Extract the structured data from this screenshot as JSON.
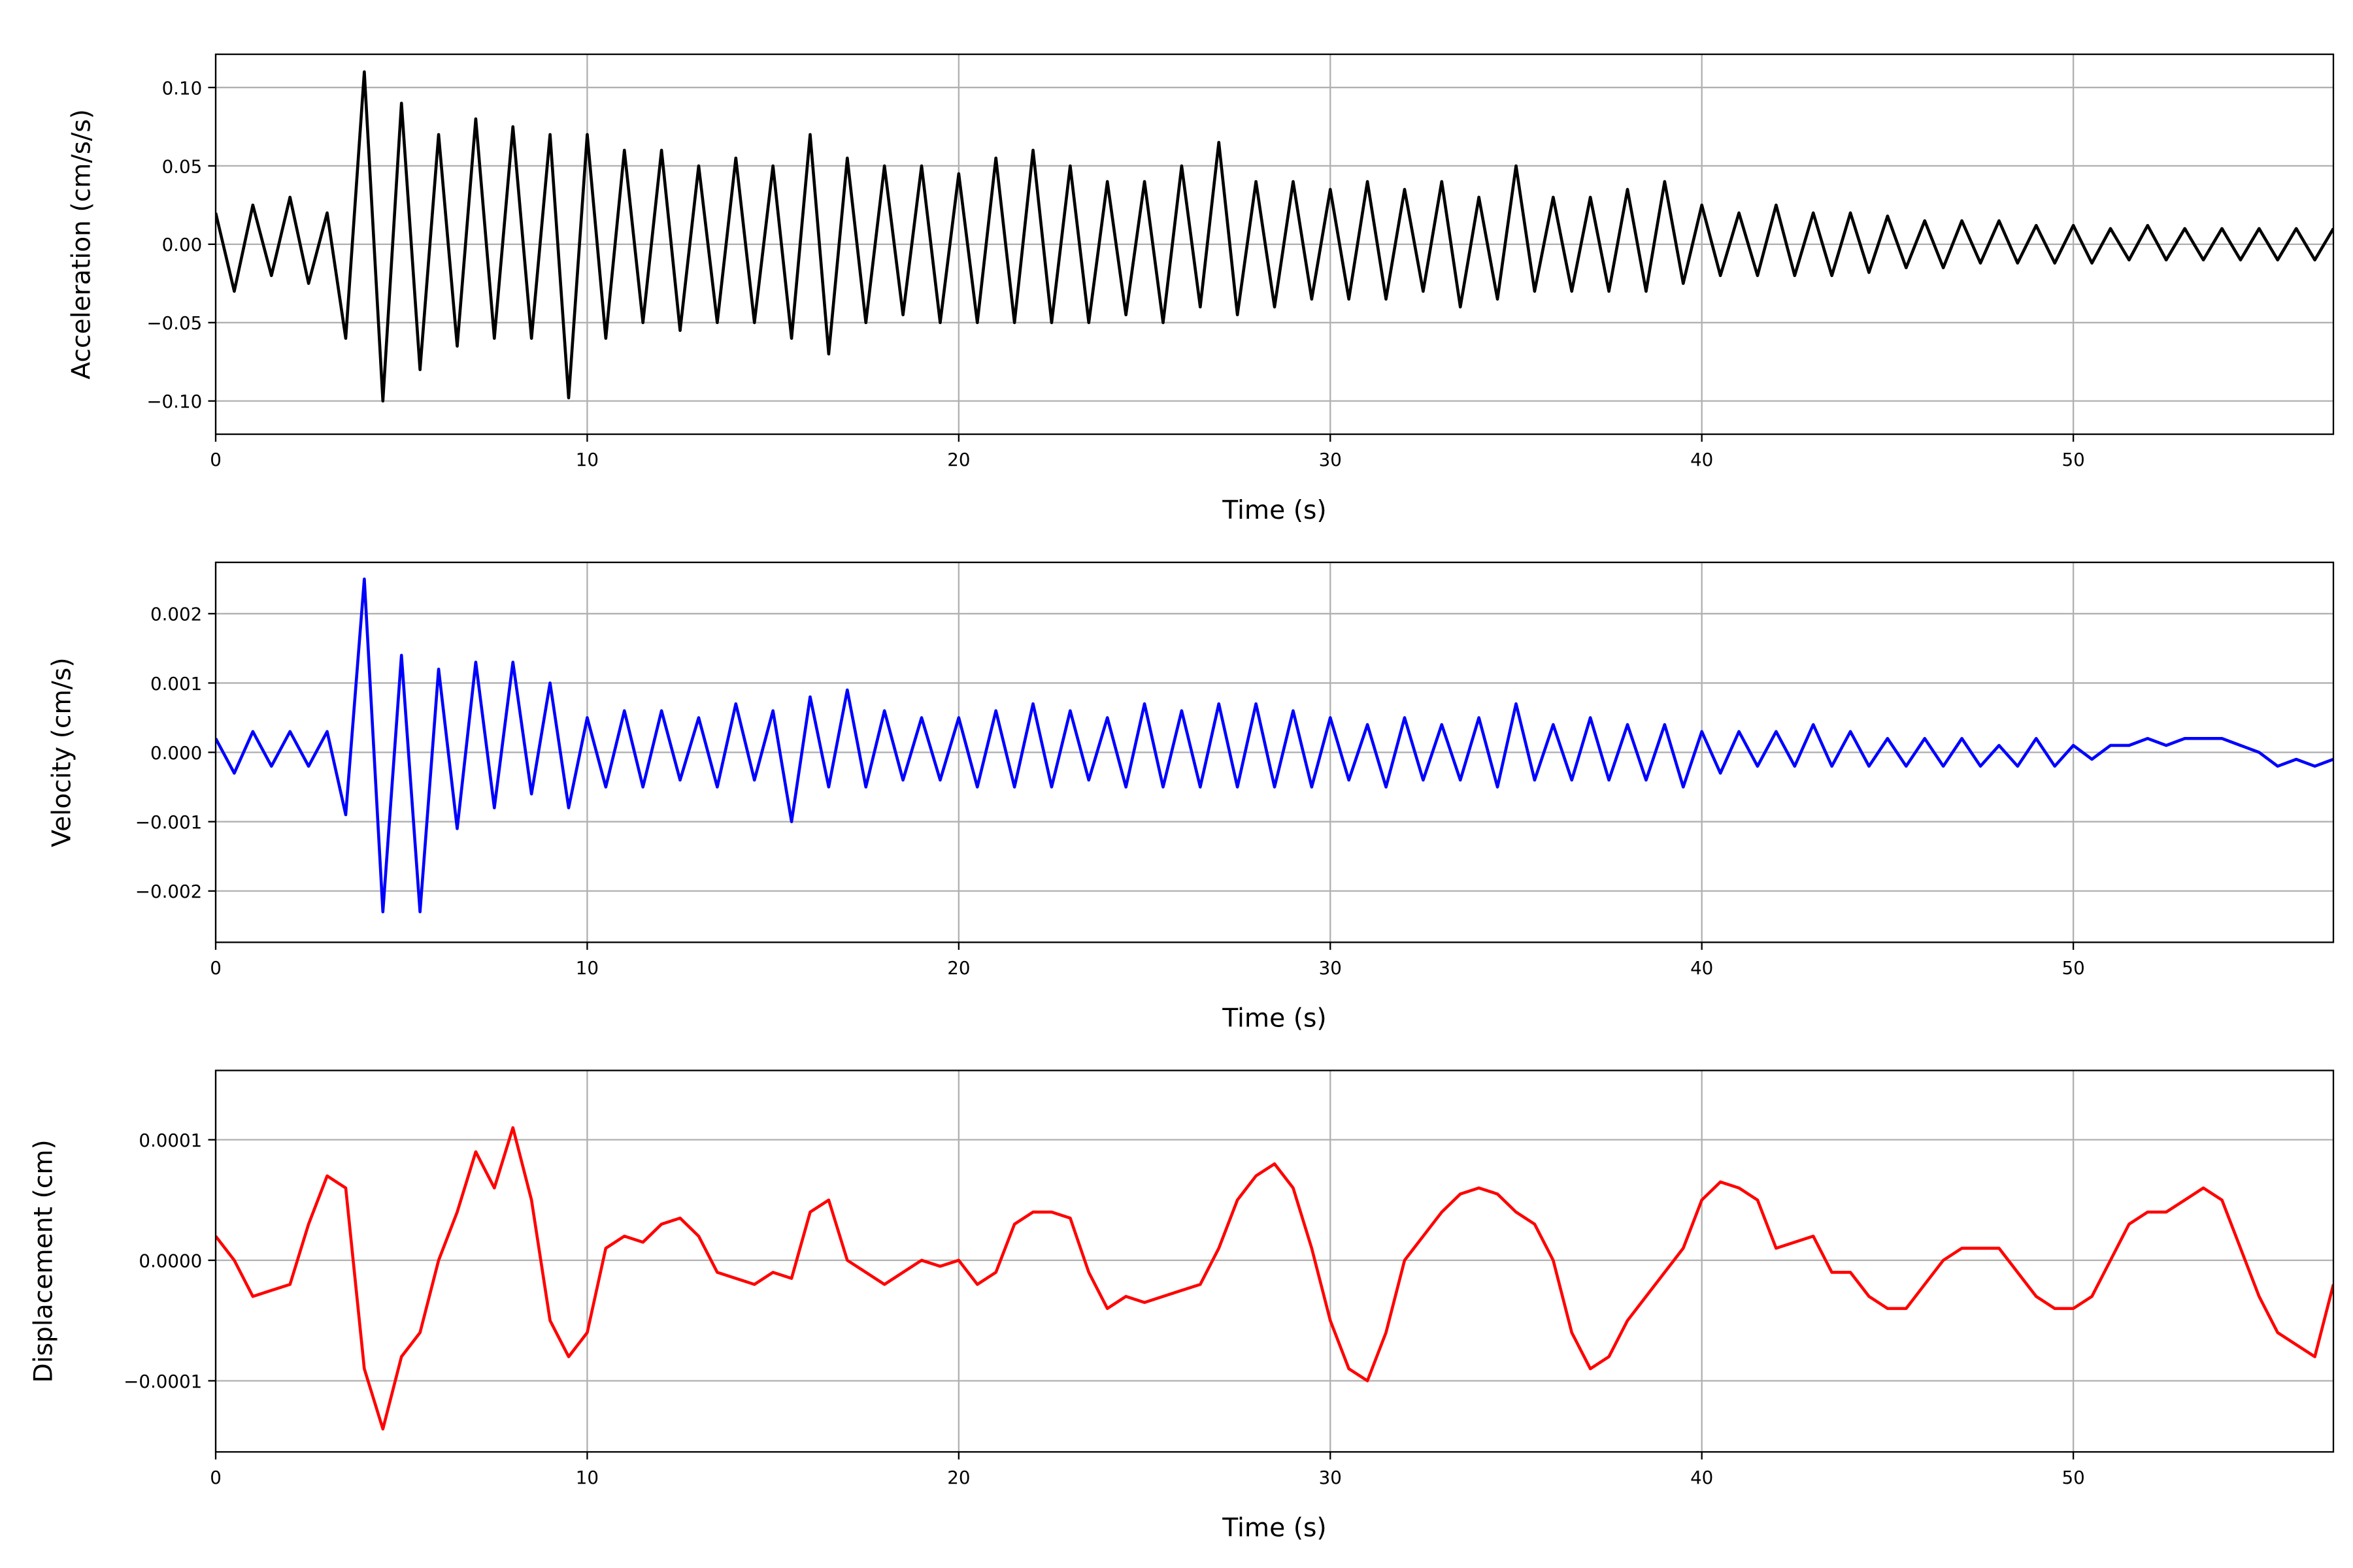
{
  "chart_data": [
    {
      "type": "line",
      "xlabel": "Time (s)",
      "ylabel": "Acceleration (cm/s/s)",
      "color": "#000000",
      "grid": true,
      "xlim": [
        0,
        57
      ],
      "xticks": [
        0,
        10,
        20,
        30,
        40,
        50
      ],
      "ylim": [
        -0.1212,
        0.1212
      ],
      "yticks": [
        {
          "value": -0.1,
          "label": "−0.10"
        },
        {
          "value": -0.05,
          "label": "−0.05"
        },
        {
          "value": 0,
          "label": "0.00"
        },
        {
          "value": 0.05,
          "label": "0.05"
        },
        {
          "value": 0.1,
          "label": "0.10"
        }
      ],
      "x": [
        0,
        0.5,
        1,
        1.5,
        2,
        2.5,
        3,
        3.5,
        4,
        4.5,
        5,
        5.5,
        6,
        6.5,
        7,
        7.5,
        8,
        8.5,
        9,
        9.5,
        10,
        10.5,
        11,
        11.5,
        12,
        12.5,
        13,
        13.5,
        14,
        14.5,
        15,
        15.5,
        16,
        16.5,
        17,
        17.5,
        18,
        18.5,
        19,
        19.5,
        20,
        20.5,
        21,
        21.5,
        22,
        22.5,
        23,
        23.5,
        24,
        24.5,
        25,
        25.5,
        26,
        26.5,
        27,
        27.5,
        28,
        28.5,
        29,
        29.5,
        30,
        30.5,
        31,
        31.5,
        32,
        32.5,
        33,
        33.5,
        34,
        34.5,
        35,
        35.5,
        36,
        36.5,
        37,
        37.5,
        38,
        38.5,
        39,
        39.5,
        40,
        40.5,
        41,
        41.5,
        42,
        42.5,
        43,
        43.5,
        44,
        44.5,
        45,
        45.5,
        46,
        46.5,
        47,
        47.5,
        48,
        48.5,
        49,
        49.5,
        50,
        50.5,
        51,
        51.5,
        52,
        52.5,
        53,
        53.5,
        54,
        54.5,
        55,
        55.5,
        56,
        56.5,
        57
      ],
      "values": [
        0.02,
        -0.03,
        0.025,
        -0.02,
        0.03,
        -0.025,
        0.02,
        -0.06,
        0.11,
        -0.1,
        0.09,
        -0.08,
        0.07,
        -0.065,
        0.08,
        -0.06,
        0.075,
        -0.06,
        0.07,
        -0.098,
        0.07,
        -0.06,
        0.06,
        -0.05,
        0.06,
        -0.055,
        0.05,
        -0.05,
        0.055,
        -0.05,
        0.05,
        -0.06,
        0.07,
        -0.07,
        0.055,
        -0.05,
        0.05,
        -0.045,
        0.05,
        -0.05,
        0.045,
        -0.05,
        0.055,
        -0.05,
        0.06,
        -0.05,
        0.05,
        -0.05,
        0.04,
        -0.045,
        0.04,
        -0.05,
        0.05,
        -0.04,
        0.065,
        -0.045,
        0.04,
        -0.04,
        0.04,
        -0.035,
        0.035,
        -0.035,
        0.04,
        -0.035,
        0.035,
        -0.03,
        0.04,
        -0.04,
        0.03,
        -0.035,
        0.05,
        -0.03,
        0.03,
        -0.03,
        0.03,
        -0.03,
        0.035,
        -0.03,
        0.04,
        -0.025,
        0.025,
        -0.02,
        0.02,
        -0.02,
        0.025,
        -0.02,
        0.02,
        -0.02,
        0.02,
        -0.018,
        0.018,
        -0.015,
        0.015,
        -0.015,
        0.015,
        -0.012,
        0.015,
        -0.012,
        0.012,
        -0.012,
        0.012,
        -0.012,
        0.01,
        -0.01,
        0.012,
        -0.01,
        0.01,
        -0.01,
        0.01,
        -0.01,
        0.01,
        -0.01,
        0.01,
        -0.01,
        0.01
      ]
    },
    {
      "type": "line",
      "xlabel": "Time (s)",
      "ylabel": "Velocity (cm/s)",
      "color": "#0000ff",
      "grid": true,
      "xlim": [
        0,
        57
      ],
      "xticks": [
        0,
        10,
        20,
        30,
        40,
        50
      ],
      "ylim": [
        -0.00274,
        0.00274
      ],
      "yticks": [
        {
          "value": -0.002,
          "label": "−0.002"
        },
        {
          "value": -0.001,
          "label": "−0.001"
        },
        {
          "value": 0,
          "label": "0.000"
        },
        {
          "value": 0.001,
          "label": "0.001"
        },
        {
          "value": 0.002,
          "label": "0.002"
        }
      ],
      "x": [
        0,
        0.5,
        1,
        1.5,
        2,
        2.5,
        3,
        3.5,
        4,
        4.5,
        5,
        5.5,
        6,
        6.5,
        7,
        7.5,
        8,
        8.5,
        9,
        9.5,
        10,
        10.5,
        11,
        11.5,
        12,
        12.5,
        13,
        13.5,
        14,
        14.5,
        15,
        15.5,
        16,
        16.5,
        17,
        17.5,
        18,
        18.5,
        19,
        19.5,
        20,
        20.5,
        21,
        21.5,
        22,
        22.5,
        23,
        23.5,
        24,
        24.5,
        25,
        25.5,
        26,
        26.5,
        27,
        27.5,
        28,
        28.5,
        29,
        29.5,
        30,
        30.5,
        31,
        31.5,
        32,
        32.5,
        33,
        33.5,
        34,
        34.5,
        35,
        35.5,
        36,
        36.5,
        37,
        37.5,
        38,
        38.5,
        39,
        39.5,
        40,
        40.5,
        41,
        41.5,
        42,
        42.5,
        43,
        43.5,
        44,
        44.5,
        45,
        45.5,
        46,
        46.5,
        47,
        47.5,
        48,
        48.5,
        49,
        49.5,
        50,
        50.5,
        51,
        51.5,
        52,
        52.5,
        53,
        53.5,
        54,
        54.5,
        55,
        55.5,
        56,
        56.5,
        57
      ],
      "values": [
        0.0002,
        -0.0003,
        0.0003,
        -0.0002,
        0.0003,
        -0.0002,
        0.0003,
        -0.0009,
        0.0025,
        -0.0023,
        0.0014,
        -0.0023,
        0.0012,
        -0.0011,
        0.0013,
        -0.0008,
        0.0013,
        -0.0006,
        0.001,
        -0.0008,
        0.0005,
        -0.0005,
        0.0006,
        -0.0005,
        0.0006,
        -0.0004,
        0.0005,
        -0.0005,
        0.0007,
        -0.0004,
        0.0006,
        -0.001,
        0.0008,
        -0.0005,
        0.0009,
        -0.0005,
        0.0006,
        -0.0004,
        0.0005,
        -0.0004,
        0.0005,
        -0.0005,
        0.0006,
        -0.0005,
        0.0007,
        -0.0005,
        0.0006,
        -0.0004,
        0.0005,
        -0.0005,
        0.0007,
        -0.0005,
        0.0006,
        -0.0005,
        0.0007,
        -0.0005,
        0.0007,
        -0.0005,
        0.0006,
        -0.0005,
        0.0005,
        -0.0004,
        0.0004,
        -0.0005,
        0.0005,
        -0.0004,
        0.0004,
        -0.0004,
        0.0005,
        -0.0005,
        0.0007,
        -0.0004,
        0.0004,
        -0.0004,
        0.0005,
        -0.0004,
        0.0004,
        -0.0004,
        0.0004,
        -0.0005,
        0.0003,
        -0.0003,
        0.0003,
        -0.0002,
        0.0003,
        -0.0002,
        0.0004,
        -0.0002,
        0.0003,
        -0.0002,
        0.0002,
        -0.0002,
        0.0002,
        -0.0002,
        0.0002,
        -0.0002,
        0.0001,
        -0.0002,
        0.0002,
        -0.0002,
        0.0001,
        -0.0001,
        0.0001,
        0.0001,
        0.0002,
        0.0001,
        0.0002,
        0.0002,
        0.0002,
        0.0001,
        0,
        -0.0002,
        -0.0001,
        -0.0002,
        -0.0001
      ]
    },
    {
      "type": "line",
      "xlabel": "Time (s)",
      "ylabel": "Displacement (cm)",
      "color": "#ff0000",
      "grid": true,
      "xlim": [
        0,
        57
      ],
      "xticks": [
        0,
        10,
        20,
        30,
        40,
        50
      ],
      "ylim": [
        -0.000159,
        0.0001575
      ],
      "yticks": [
        {
          "value": -0.0001,
          "label": "−0.0001"
        },
        {
          "value": 0,
          "label": "0.0000"
        },
        {
          "value": 0.0001,
          "label": "0.0001"
        }
      ],
      "x": [
        0,
        0.5,
        1,
        1.5,
        2,
        2.5,
        3,
        3.5,
        4,
        4.5,
        5,
        5.5,
        6,
        6.5,
        7,
        7.5,
        8,
        8.5,
        9,
        9.5,
        10,
        10.5,
        11,
        11.5,
        12,
        12.5,
        13,
        13.5,
        14,
        14.5,
        15,
        15.5,
        16,
        16.5,
        17,
        17.5,
        18,
        18.5,
        19,
        19.5,
        20,
        20.5,
        21,
        21.5,
        22,
        22.5,
        23,
        23.5,
        24,
        24.5,
        25,
        25.5,
        26,
        26.5,
        27,
        27.5,
        28,
        28.5,
        29,
        29.5,
        30,
        30.5,
        31,
        31.5,
        32,
        32.5,
        33,
        33.5,
        34,
        34.5,
        35,
        35.5,
        36,
        36.5,
        37,
        37.5,
        38,
        38.5,
        39,
        39.5,
        40,
        40.5,
        41,
        41.5,
        42,
        42.5,
        43,
        43.5,
        44,
        44.5,
        45,
        45.5,
        46,
        46.5,
        47,
        47.5,
        48,
        48.5,
        49,
        49.5,
        50,
        50.5,
        51,
        51.5,
        52,
        52.5,
        53,
        53.5,
        54,
        54.5,
        55,
        55.5,
        56,
        56.5,
        57
      ],
      "values": [
        2e-05,
        0,
        -3e-05,
        -2.5e-05,
        -2e-05,
        3e-05,
        7e-05,
        6e-05,
        -9e-05,
        -0.00014,
        -8e-05,
        -6e-05,
        0,
        4e-05,
        9e-05,
        6e-05,
        0.00011,
        5e-05,
        -5e-05,
        -8e-05,
        -6e-05,
        1e-05,
        2e-05,
        1.5e-05,
        3e-05,
        3.5e-05,
        2e-05,
        -1e-05,
        -1.5e-05,
        -2e-05,
        -1e-05,
        -1.5e-05,
        4e-05,
        5e-05,
        0,
        -1e-05,
        -2e-05,
        -1e-05,
        0,
        -5e-06,
        0,
        -2e-05,
        -1e-05,
        3e-05,
        4e-05,
        4e-05,
        3.5e-05,
        -1e-05,
        -4e-05,
        -3e-05,
        -3.5e-05,
        -3e-05,
        -2.5e-05,
        -2e-05,
        1e-05,
        5e-05,
        7e-05,
        8e-05,
        6e-05,
        1e-05,
        -5e-05,
        -9e-05,
        -0.0001,
        -6e-05,
        0,
        2e-05,
        4e-05,
        5.5e-05,
        6e-05,
        5.5e-05,
        4e-05,
        3e-05,
        0,
        -6e-05,
        -9e-05,
        -8e-05,
        -5e-05,
        -3e-05,
        -1e-05,
        1e-05,
        5e-05,
        6.5e-05,
        6e-05,
        5e-05,
        1e-05,
        1.5e-05,
        2e-05,
        -1e-05,
        -1e-05,
        -3e-05,
        -4e-05,
        -4e-05,
        -2e-05,
        0,
        1e-05,
        1e-05,
        1e-05,
        -1e-05,
        -3e-05,
        -4e-05,
        -4e-05,
        -3e-05,
        0,
        3e-05,
        4e-05,
        4e-05,
        5e-05,
        6e-05,
        5e-05,
        1e-05,
        -3e-05,
        -6e-05,
        -7e-05,
        -8e-05,
        -2e-05
      ]
    }
  ]
}
